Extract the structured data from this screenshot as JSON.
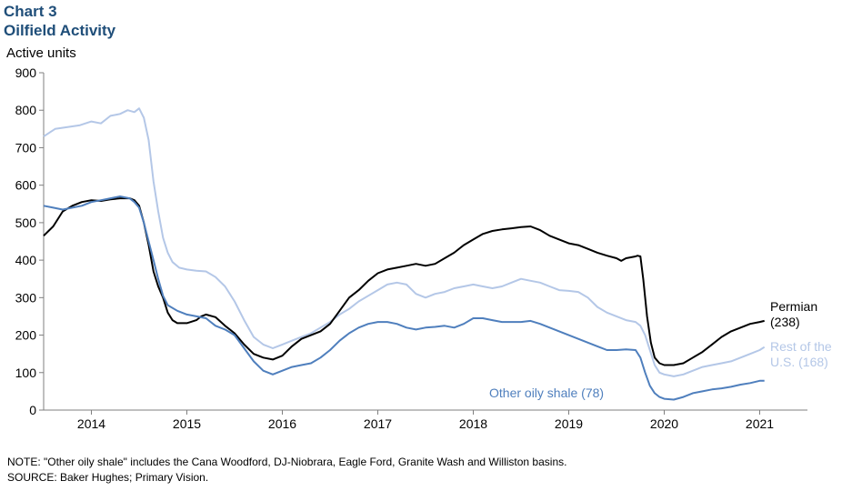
{
  "header": {
    "chart_number": "Chart 3",
    "chart_title": "Oilfield Activity"
  },
  "notes": {
    "note": "NOTE: \"Other oily shale\" includes the Cana Woodford, DJ-Niobrara,  Eagle Ford, Granite Wash and Williston basins.",
    "source": "SOURCE: Baker Hughes; Primary Vision."
  },
  "colors": {
    "permian": "#000000",
    "rest_of_us": "#b4c7e7",
    "other_oily_shale": "#4f7fbd",
    "title": "#1f4e79"
  },
  "chart_data": {
    "type": "line",
    "title": "Oilfield Activity",
    "ylabel": "Active units",
    "xlabel": "",
    "ylim": [
      0,
      900
    ],
    "xlim": [
      2013.5,
      2021.5
    ],
    "y_ticks": [
      0,
      100,
      200,
      300,
      400,
      500,
      600,
      700,
      800,
      900
    ],
    "x_tick_labels": [
      "2014",
      "2015",
      "2016",
      "2017",
      "2018",
      "2019",
      "2020",
      "2021"
    ],
    "grid": false,
    "legend": "direct labels at series ends",
    "series": [
      {
        "name": "Rest of the U.S. (168)",
        "label_lines": [
          "Rest of the",
          "U.S. (168)"
        ],
        "color": "#b4c7e7",
        "points": [
          [
            2013.5,
            730
          ],
          [
            2013.62,
            750
          ],
          [
            2013.75,
            755
          ],
          [
            2013.88,
            760
          ],
          [
            2014.0,
            770
          ],
          [
            2014.1,
            765
          ],
          [
            2014.2,
            785
          ],
          [
            2014.3,
            790
          ],
          [
            2014.38,
            800
          ],
          [
            2014.45,
            795
          ],
          [
            2014.5,
            805
          ],
          [
            2014.55,
            780
          ],
          [
            2014.6,
            720
          ],
          [
            2014.65,
            610
          ],
          [
            2014.7,
            530
          ],
          [
            2014.75,
            460
          ],
          [
            2014.8,
            420
          ],
          [
            2014.85,
            395
          ],
          [
            2014.92,
            380
          ],
          [
            2015.0,
            375
          ],
          [
            2015.1,
            372
          ],
          [
            2015.2,
            370
          ],
          [
            2015.3,
            355
          ],
          [
            2015.4,
            330
          ],
          [
            2015.5,
            290
          ],
          [
            2015.6,
            240
          ],
          [
            2015.7,
            195
          ],
          [
            2015.8,
            175
          ],
          [
            2015.9,
            165
          ],
          [
            2016.0,
            175
          ],
          [
            2016.1,
            185
          ],
          [
            2016.2,
            195
          ],
          [
            2016.3,
            205
          ],
          [
            2016.4,
            220
          ],
          [
            2016.5,
            235
          ],
          [
            2016.6,
            255
          ],
          [
            2016.7,
            270
          ],
          [
            2016.8,
            290
          ],
          [
            2016.9,
            305
          ],
          [
            2017.0,
            320
          ],
          [
            2017.1,
            335
          ],
          [
            2017.2,
            340
          ],
          [
            2017.3,
            335
          ],
          [
            2017.4,
            310
          ],
          [
            2017.5,
            300
          ],
          [
            2017.6,
            310
          ],
          [
            2017.7,
            315
          ],
          [
            2017.8,
            325
          ],
          [
            2017.9,
            330
          ],
          [
            2018.0,
            335
          ],
          [
            2018.1,
            330
          ],
          [
            2018.2,
            325
          ],
          [
            2018.3,
            330
          ],
          [
            2018.4,
            340
          ],
          [
            2018.5,
            350
          ],
          [
            2018.6,
            345
          ],
          [
            2018.7,
            340
          ],
          [
            2018.8,
            330
          ],
          [
            2018.9,
            320
          ],
          [
            2019.0,
            318
          ],
          [
            2019.1,
            315
          ],
          [
            2019.2,
            300
          ],
          [
            2019.3,
            275
          ],
          [
            2019.4,
            260
          ],
          [
            2019.5,
            250
          ],
          [
            2019.6,
            240
          ],
          [
            2019.7,
            235
          ],
          [
            2019.75,
            225
          ],
          [
            2019.8,
            200
          ],
          [
            2019.85,
            160
          ],
          [
            2019.9,
            120
          ],
          [
            2019.95,
            100
          ],
          [
            2020.0,
            95
          ],
          [
            2020.1,
            90
          ],
          [
            2020.2,
            95
          ],
          [
            2020.3,
            105
          ],
          [
            2020.4,
            115
          ],
          [
            2020.5,
            120
          ],
          [
            2020.6,
            125
          ],
          [
            2020.7,
            130
          ],
          [
            2020.8,
            140
          ],
          [
            2020.9,
            150
          ],
          [
            2021.0,
            160
          ],
          [
            2021.05,
            168
          ]
        ]
      },
      {
        "name": "Permian (238)",
        "label_lines": [
          "Permian",
          "(238)"
        ],
        "color": "#000000",
        "points": [
          [
            2013.5,
            465
          ],
          [
            2013.6,
            490
          ],
          [
            2013.7,
            530
          ],
          [
            2013.8,
            545
          ],
          [
            2013.9,
            555
          ],
          [
            2014.0,
            560
          ],
          [
            2014.1,
            558
          ],
          [
            2014.2,
            562
          ],
          [
            2014.3,
            565
          ],
          [
            2014.4,
            565
          ],
          [
            2014.45,
            560
          ],
          [
            2014.5,
            545
          ],
          [
            2014.55,
            500
          ],
          [
            2014.6,
            440
          ],
          [
            2014.65,
            370
          ],
          [
            2014.7,
            330
          ],
          [
            2014.75,
            300
          ],
          [
            2014.8,
            260
          ],
          [
            2014.85,
            240
          ],
          [
            2014.9,
            232
          ],
          [
            2015.0,
            232
          ],
          [
            2015.1,
            240
          ],
          [
            2015.15,
            250
          ],
          [
            2015.2,
            255
          ],
          [
            2015.3,
            248
          ],
          [
            2015.4,
            225
          ],
          [
            2015.5,
            205
          ],
          [
            2015.6,
            175
          ],
          [
            2015.7,
            150
          ],
          [
            2015.8,
            140
          ],
          [
            2015.9,
            135
          ],
          [
            2016.0,
            145
          ],
          [
            2016.1,
            170
          ],
          [
            2016.2,
            190
          ],
          [
            2016.3,
            200
          ],
          [
            2016.4,
            210
          ],
          [
            2016.5,
            230
          ],
          [
            2016.6,
            265
          ],
          [
            2016.7,
            300
          ],
          [
            2016.8,
            320
          ],
          [
            2016.9,
            345
          ],
          [
            2017.0,
            365
          ],
          [
            2017.1,
            375
          ],
          [
            2017.2,
            380
          ],
          [
            2017.3,
            385
          ],
          [
            2017.4,
            390
          ],
          [
            2017.5,
            385
          ],
          [
            2017.6,
            390
          ],
          [
            2017.7,
            405
          ],
          [
            2017.8,
            420
          ],
          [
            2017.9,
            440
          ],
          [
            2018.0,
            455
          ],
          [
            2018.1,
            470
          ],
          [
            2018.2,
            478
          ],
          [
            2018.3,
            482
          ],
          [
            2018.4,
            485
          ],
          [
            2018.5,
            488
          ],
          [
            2018.6,
            490
          ],
          [
            2018.7,
            480
          ],
          [
            2018.8,
            465
          ],
          [
            2018.9,
            455
          ],
          [
            2019.0,
            445
          ],
          [
            2019.1,
            440
          ],
          [
            2019.2,
            430
          ],
          [
            2019.3,
            420
          ],
          [
            2019.4,
            412
          ],
          [
            2019.5,
            405
          ],
          [
            2019.55,
            398
          ],
          [
            2019.6,
            405
          ],
          [
            2019.7,
            410
          ],
          [
            2019.72,
            412
          ],
          [
            2019.75,
            410
          ],
          [
            2019.78,
            350
          ],
          [
            2019.82,
            250
          ],
          [
            2019.86,
            180
          ],
          [
            2019.9,
            140
          ],
          [
            2019.95,
            125
          ],
          [
            2020.0,
            120
          ],
          [
            2020.1,
            120
          ],
          [
            2020.2,
            125
          ],
          [
            2020.3,
            140
          ],
          [
            2020.4,
            155
          ],
          [
            2020.5,
            175
          ],
          [
            2020.6,
            195
          ],
          [
            2020.7,
            210
          ],
          [
            2020.8,
            220
          ],
          [
            2020.9,
            230
          ],
          [
            2021.0,
            235
          ],
          [
            2021.05,
            238
          ]
        ]
      },
      {
        "name": "Other oily shale (78)",
        "label_lines": [
          "Other oily shale (78)"
        ],
        "color": "#4f7fbd",
        "points": [
          [
            2013.5,
            545
          ],
          [
            2013.6,
            540
          ],
          [
            2013.7,
            535
          ],
          [
            2013.8,
            540
          ],
          [
            2013.9,
            545
          ],
          [
            2014.0,
            555
          ],
          [
            2014.1,
            560
          ],
          [
            2014.2,
            565
          ],
          [
            2014.3,
            570
          ],
          [
            2014.4,
            565
          ],
          [
            2014.45,
            555
          ],
          [
            2014.5,
            540
          ],
          [
            2014.55,
            500
          ],
          [
            2014.6,
            450
          ],
          [
            2014.65,
            400
          ],
          [
            2014.7,
            350
          ],
          [
            2014.75,
            305
          ],
          [
            2014.8,
            280
          ],
          [
            2014.9,
            265
          ],
          [
            2015.0,
            255
          ],
          [
            2015.1,
            250
          ],
          [
            2015.2,
            245
          ],
          [
            2015.3,
            225
          ],
          [
            2015.4,
            215
          ],
          [
            2015.5,
            200
          ],
          [
            2015.6,
            165
          ],
          [
            2015.7,
            130
          ],
          [
            2015.8,
            105
          ],
          [
            2015.9,
            95
          ],
          [
            2016.0,
            105
          ],
          [
            2016.1,
            115
          ],
          [
            2016.2,
            120
          ],
          [
            2016.3,
            125
          ],
          [
            2016.4,
            140
          ],
          [
            2016.5,
            160
          ],
          [
            2016.6,
            185
          ],
          [
            2016.7,
            205
          ],
          [
            2016.8,
            220
          ],
          [
            2016.9,
            230
          ],
          [
            2017.0,
            235
          ],
          [
            2017.1,
            235
          ],
          [
            2017.2,
            230
          ],
          [
            2017.3,
            220
          ],
          [
            2017.4,
            215
          ],
          [
            2017.5,
            220
          ],
          [
            2017.6,
            222
          ],
          [
            2017.7,
            225
          ],
          [
            2017.8,
            220
          ],
          [
            2017.9,
            230
          ],
          [
            2018.0,
            245
          ],
          [
            2018.1,
            245
          ],
          [
            2018.2,
            240
          ],
          [
            2018.3,
            235
          ],
          [
            2018.4,
            235
          ],
          [
            2018.5,
            235
          ],
          [
            2018.6,
            238
          ],
          [
            2018.7,
            230
          ],
          [
            2018.8,
            220
          ],
          [
            2018.9,
            210
          ],
          [
            2019.0,
            200
          ],
          [
            2019.1,
            190
          ],
          [
            2019.2,
            180
          ],
          [
            2019.3,
            170
          ],
          [
            2019.4,
            160
          ],
          [
            2019.5,
            160
          ],
          [
            2019.6,
            162
          ],
          [
            2019.7,
            160
          ],
          [
            2019.75,
            140
          ],
          [
            2019.8,
            100
          ],
          [
            2019.85,
            65
          ],
          [
            2019.9,
            45
          ],
          [
            2019.95,
            35
          ],
          [
            2020.0,
            30
          ],
          [
            2020.1,
            28
          ],
          [
            2020.2,
            35
          ],
          [
            2020.3,
            45
          ],
          [
            2020.4,
            50
          ],
          [
            2020.5,
            55
          ],
          [
            2020.6,
            58
          ],
          [
            2020.7,
            62
          ],
          [
            2020.8,
            68
          ],
          [
            2020.9,
            72
          ],
          [
            2021.0,
            78
          ],
          [
            2021.05,
            78
          ]
        ]
      }
    ]
  }
}
